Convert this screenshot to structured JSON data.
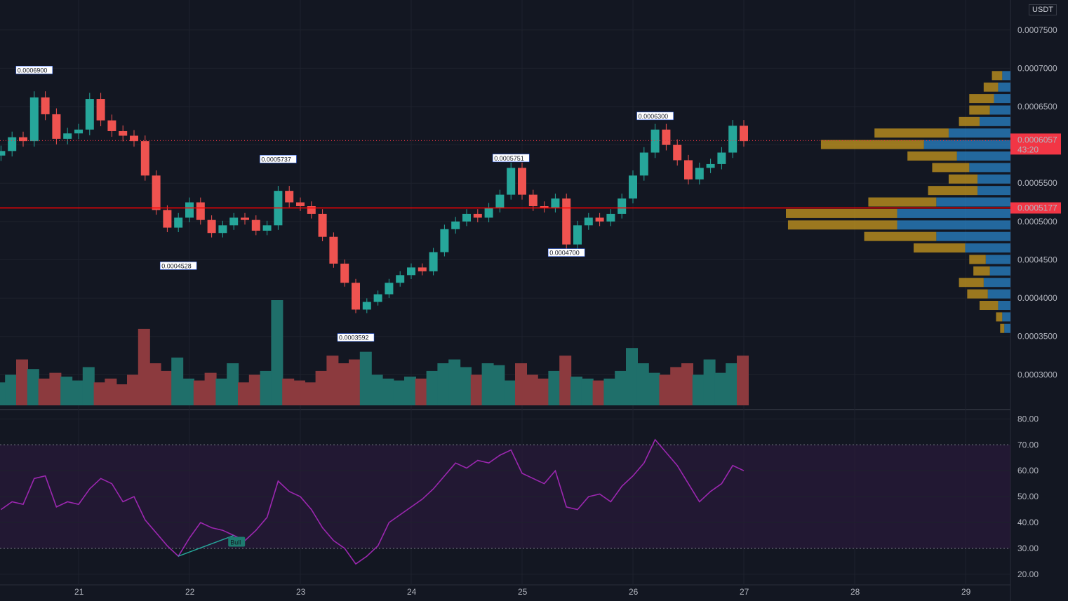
{
  "currency": "USDT",
  "colors": {
    "background": "#131722",
    "grid": "#1e222d",
    "up": "#26a69a",
    "down": "#ef5350",
    "volume_up": "#1f6f6a",
    "volume_down": "#8c3a3e",
    "rsi_line": "#9c27b0",
    "rsi_band": "#2a1a3a",
    "hline": "#ff0000",
    "vp_up": "#2a84c8",
    "vp_down": "#c99a1f",
    "price_badge": "#f23645"
  },
  "price_axis": {
    "labels": [
      "0.0007500",
      "0.0007000",
      "0.0006500",
      "0.0006000",
      "0.0005500",
      "0.0005000",
      "0.0004500",
      "0.0004000",
      "0.0003500",
      "0.0003000"
    ],
    "current_price": "0.0006057",
    "countdown": "43:20",
    "hline_price": "0.0005177"
  },
  "rsi_axis": {
    "labels": [
      "80.00",
      "70.00",
      "60.00",
      "50.00",
      "40.00",
      "30.00",
      "20.00"
    ]
  },
  "time_axis": {
    "labels": [
      "21",
      "22",
      "23",
      "24",
      "25",
      "26",
      "27",
      "28",
      "29"
    ]
  },
  "annotations": {
    "high_labels": [
      "0.0006900",
      "0.0005737",
      "0.0005751",
      "0.0006300"
    ],
    "low_labels": [
      "0.0004528",
      "0.0003592",
      "0.0004700"
    ],
    "bull_label": "Bull"
  },
  "chart_data": {
    "type": "candlestick",
    "x": [
      "20.3",
      "20.4",
      "20.5",
      "20.6",
      "20.7",
      "20.8",
      "20.9",
      "21.0",
      "21.1",
      "21.2",
      "21.3",
      "21.4",
      "21.5",
      "21.6",
      "21.7",
      "21.8",
      "21.9",
      "22.0",
      "22.1",
      "22.2",
      "22.3",
      "22.4",
      "22.5",
      "22.6",
      "22.7",
      "22.8",
      "22.9",
      "23.0",
      "23.1",
      "23.2",
      "23.3",
      "23.4",
      "23.5",
      "23.6",
      "23.7",
      "23.8",
      "23.9",
      "24.0",
      "24.1",
      "24.2",
      "24.3",
      "24.4",
      "24.5",
      "24.6",
      "24.7",
      "24.8",
      "24.9",
      "25.0",
      "25.1",
      "25.2",
      "25.3",
      "25.4",
      "25.5",
      "25.6",
      "25.7",
      "25.8",
      "25.9",
      "26.0",
      "26.1",
      "26.2",
      "26.3",
      "26.4",
      "26.5",
      "26.6",
      "26.7",
      "26.8",
      "26.9",
      "27.0"
    ],
    "close": [
      0.000592,
      0.00061,
      0.000605,
      0.000662,
      0.00064,
      0.000608,
      0.000615,
      0.00062,
      0.00066,
      0.000632,
      0.000618,
      0.000612,
      0.000605,
      0.00056,
      0.000515,
      0.000492,
      0.000505,
      0.000525,
      0.000502,
      0.000485,
      0.000495,
      0.000505,
      0.000502,
      0.000488,
      0.000495,
      0.00054,
      0.000525,
      0.00052,
      0.00051,
      0.00048,
      0.000445,
      0.00042,
      0.000385,
      0.000395,
      0.000405,
      0.00042,
      0.00043,
      0.00044,
      0.000435,
      0.00046,
      0.00049,
      0.0005,
      0.00051,
      0.000505,
      0.000518,
      0.000535,
      0.00057,
      0.000535,
      0.00052,
      0.000518,
      0.00053,
      0.00047,
      0.000495,
      0.000505,
      0.0005,
      0.00051,
      0.00053,
      0.00056,
      0.00059,
      0.00062,
      0.0006,
      0.00058,
      0.000555,
      0.00057,
      0.000575,
      0.00059,
      0.000625,
      0.000605
    ],
    "volume": [
      12,
      16,
      24,
      19,
      14,
      17,
      15,
      13,
      20,
      12,
      14,
      11,
      16,
      40,
      22,
      18,
      25,
      14,
      13,
      17,
      14,
      22,
      12,
      16,
      18,
      55,
      14,
      13,
      12,
      18,
      26,
      22,
      24,
      28,
      16,
      14,
      13,
      15,
      14,
      18,
      22,
      24,
      20,
      16,
      22,
      21,
      13,
      22,
      16,
      14,
      18,
      26,
      15,
      14,
      13,
      14,
      18,
      30,
      22,
      17,
      16,
      20,
      22,
      16,
      24,
      17,
      22,
      26
    ],
    "rsi": [
      45,
      48,
      47,
      57,
      58,
      46,
      48,
      47,
      53,
      57,
      55,
      48,
      50,
      41,
      36,
      31,
      27,
      34,
      40,
      38,
      37,
      35,
      33,
      37,
      42,
      56,
      52,
      50,
      45,
      38,
      33,
      30,
      24,
      27,
      31,
      40,
      43,
      46,
      49,
      53,
      58,
      63,
      61,
      64,
      63,
      66,
      68,
      59,
      57,
      55,
      60,
      46,
      45,
      50,
      51,
      48,
      54,
      58,
      63,
      72,
      67,
      62,
      55,
      48,
      52,
      55,
      62,
      60
    ],
    "price_range": [
      0.00026,
      0.00078
    ],
    "rsi_range": [
      17,
      82
    ],
    "rsi_bands": [
      30,
      70
    ],
    "volume_profile": [
      {
        "price": 0.00069,
        "up": 0.4,
        "down": 0.5
      },
      {
        "price": 0.000675,
        "up": 0.6,
        "down": 0.7
      },
      {
        "price": 0.00066,
        "up": 0.8,
        "down": 1.2
      },
      {
        "price": 0.000645,
        "up": 1.0,
        "down": 1.0
      },
      {
        "price": 0.00063,
        "up": 1.5,
        "down": 1.0
      },
      {
        "price": 0.000615,
        "up": 3.0,
        "down": 3.6
      },
      {
        "price": 0.0006,
        "up": 4.2,
        "down": 5.0
      },
      {
        "price": 0.000585,
        "up": 2.6,
        "down": 2.4
      },
      {
        "price": 0.00057,
        "up": 2.0,
        "down": 1.8
      },
      {
        "price": 0.000555,
        "up": 1.6,
        "down": 1.4
      },
      {
        "price": 0.00054,
        "up": 1.6,
        "down": 2.4
      },
      {
        "price": 0.000525,
        "up": 3.6,
        "down": 3.3
      },
      {
        "price": 0.00051,
        "up": 5.5,
        "down": 5.4
      },
      {
        "price": 0.000495,
        "up": 5.5,
        "down": 5.3
      },
      {
        "price": 0.00048,
        "up": 3.6,
        "down": 3.5
      },
      {
        "price": 0.000465,
        "up": 2.2,
        "down": 2.5
      },
      {
        "price": 0.00045,
        "up": 1.2,
        "down": 0.8
      },
      {
        "price": 0.000435,
        "up": 1.0,
        "down": 0.8
      },
      {
        "price": 0.00042,
        "up": 1.3,
        "down": 1.2
      },
      {
        "price": 0.000405,
        "up": 1.1,
        "down": 1.0
      },
      {
        "price": 0.00039,
        "up": 0.6,
        "down": 0.9
      },
      {
        "price": 0.000375,
        "up": 0.4,
        "down": 0.3
      },
      {
        "price": 0.00036,
        "up": 0.3,
        "down": 0.2
      }
    ]
  }
}
